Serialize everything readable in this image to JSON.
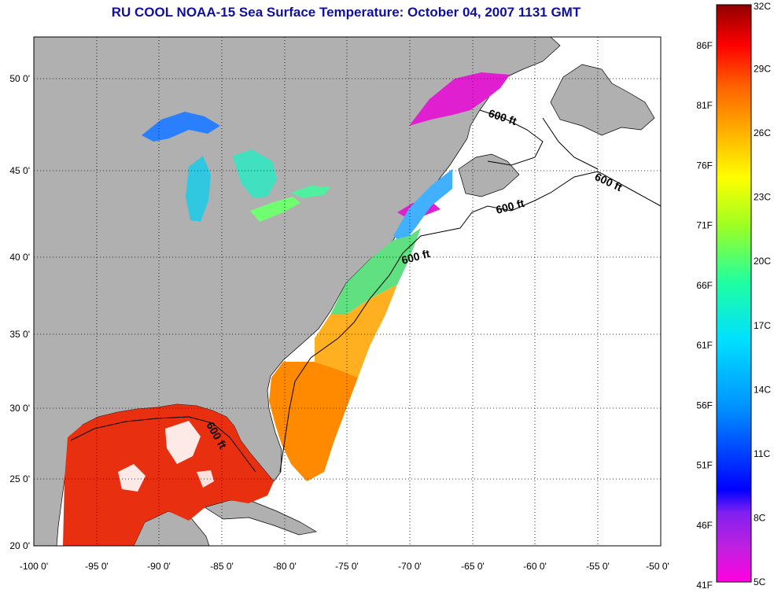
{
  "title": "RU COOL  NOAA-15  Sea Surface Temperature:  October 04, 2007 1131 GMT",
  "map": {
    "lon_labels": [
      "-100 0'",
      "-95 0'",
      "-90 0'",
      "-85 0'",
      "-80 0'",
      "-75 0'",
      "-70 0'",
      "-65 0'",
      "-60 0'",
      "-55 0'",
      "-50 0'"
    ],
    "lat_labels": [
      "50 0'",
      "45 0'",
      "40 0'",
      "35 0'",
      "30 0'",
      "25 0'",
      "20 0'"
    ],
    "lon_range": [
      -100,
      -50
    ],
    "lat_range": [
      20,
      52.5
    ],
    "grid": true,
    "depth_label": "600 ft",
    "colors": {
      "land": "#b0b0b0",
      "no_data": "#ffffff",
      "title": "#1010a0"
    }
  },
  "colorbar": {
    "celsius_labels": [
      "32C",
      "29C",
      "26C",
      "23C",
      "20C",
      "17C",
      "14C",
      "11C",
      "8C",
      "5C"
    ],
    "fahrenheit_labels": [
      "86F",
      "81F",
      "76F",
      "71F",
      "66F",
      "61F",
      "56F",
      "51F",
      "46F",
      "41F"
    ],
    "range_c": [
      5,
      32
    ],
    "range_f": [
      41,
      89.6
    ]
  }
}
